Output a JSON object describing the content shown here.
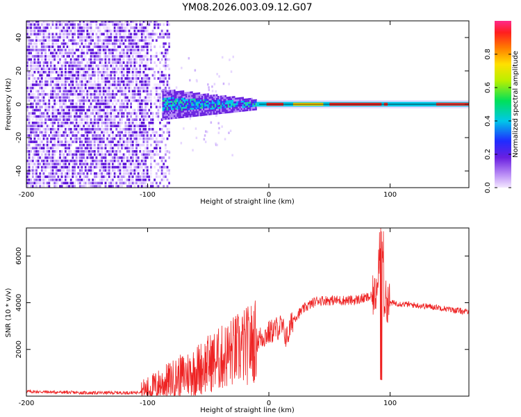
{
  "figure_title": "YM08.2026.003.09.12.G07",
  "chart_data": [
    {
      "type": "heatmap",
      "panel": "top",
      "title": "YM08.2026.003.09.12.G07",
      "xlabel": "Height of straight line (km)",
      "ylabel": "Frequency (Hz)",
      "xlim": [
        -200,
        165
      ],
      "ylim": [
        -50,
        50
      ],
      "xticks": [
        -200,
        -100,
        0,
        100
      ],
      "yticks": [
        -40,
        -20,
        0,
        20,
        40
      ],
      "xtick_labels": [
        "-200",
        "-100",
        "0",
        "100"
      ],
      "ytick_labels": [
        "-40",
        "-20",
        "0",
        "20",
        "40"
      ],
      "colorbar": {
        "label": "Normalized spectral amplitude",
        "range": [
          0.0,
          1.0
        ],
        "ticks": [
          0.0,
          0.2,
          0.4,
          0.6,
          0.8
        ],
        "tick_labels": [
          "0.0",
          "0.2",
          "0.4",
          "0.6",
          "0.8"
        ]
      },
      "regions": [
        {
          "x_range": [
            -200,
            -88
          ],
          "description": "broadband noise",
          "amplitude": 0.1
        },
        {
          "x_range": [
            -88,
            -10
          ],
          "description": "widening signal near 0 Hz",
          "amplitude": 0.35
        },
        {
          "x_range": [
            -10,
            165
          ],
          "description": "narrow carrier line near 0 Hz",
          "amplitude": 0.9
        }
      ]
    },
    {
      "type": "line",
      "panel": "bottom",
      "xlabel": "Height of straight line (km)",
      "ylabel": "SNR (10 * v/v)",
      "xlim": [
        -200,
        165
      ],
      "ylim": [
        0,
        7200
      ],
      "xticks": [
        -200,
        -100,
        0,
        100
      ],
      "yticks": [
        2000,
        4000,
        6000
      ],
      "xtick_labels": [
        "-200",
        "-100",
        "0",
        "100"
      ],
      "ytick_labels": [
        "2000",
        "4000",
        "6000"
      ],
      "color": "#ee2222",
      "series": [
        {
          "name": "SNR",
          "x": [
            -200,
            -150,
            -110,
            -100,
            -90,
            -80,
            -70,
            -60,
            -50,
            -40,
            -30,
            -20,
            -10,
            0,
            10,
            15,
            20,
            30,
            40,
            50,
            60,
            70,
            80,
            88,
            93,
            95,
            100,
            110,
            120,
            130,
            140,
            150,
            165
          ],
          "y": [
            200,
            140,
            150,
            280,
            500,
            700,
            900,
            1100,
            1400,
            1600,
            1900,
            2100,
            2400,
            2700,
            3000,
            2500,
            3300,
            3800,
            4100,
            4100,
            4100,
            4100,
            4200,
            4300,
            7200,
            4100,
            4000,
            3950,
            3900,
            3850,
            3800,
            3700,
            3600
          ]
        }
      ]
    }
  ]
}
